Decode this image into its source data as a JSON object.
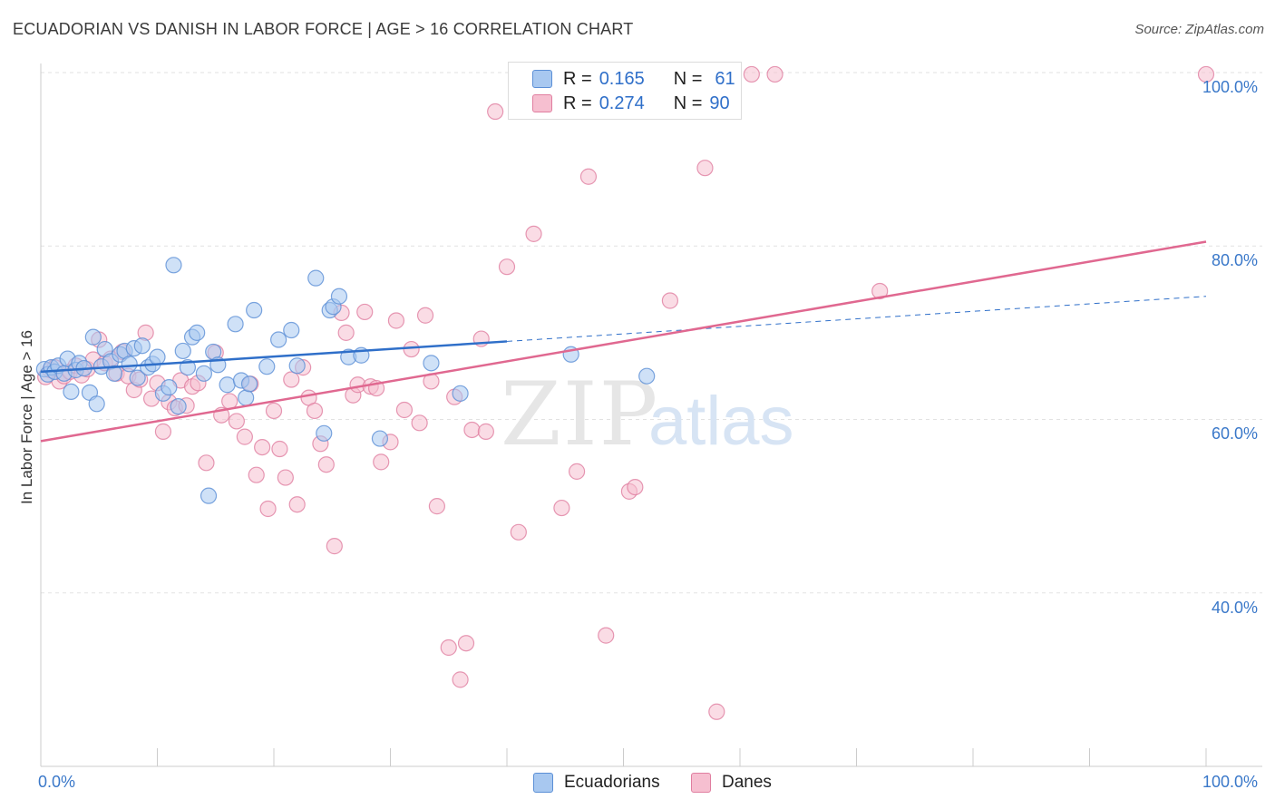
{
  "title": "ECUADORIAN VS DANISH IN LABOR FORCE | AGE > 16 CORRELATION CHART",
  "source": "Source: ZipAtlas.com",
  "watermark": {
    "zip": "ZIP",
    "atlas": "atlas"
  },
  "legend": {
    "ecuadorians": {
      "r_label": "R =",
      "r_value": "0.165",
      "n_label": "N =",
      "n_value": "61"
    },
    "danes": {
      "r_label": "R =",
      "r_value": "0.274",
      "n_label": "N =",
      "n_value": "90"
    }
  },
  "bottom_legend": {
    "ecuadorians": "Ecuadorians",
    "danes": "Danes"
  },
  "colors": {
    "ecuadorians_fill": "#a8c8f0",
    "ecuadorians_stroke": "#5b8fd6",
    "ecuadorians_line": "#2f6fc9",
    "danes_fill": "#f6bfd0",
    "danes_stroke": "#e07ea0",
    "danes_line": "#e06890",
    "axis_text": "#3a78c9",
    "grid": "#e2e2e2"
  },
  "chart_data": {
    "type": "scatter",
    "title": "ECUADORIAN VS DANISH IN LABOR FORCE | AGE > 16 CORRELATION CHART",
    "xlabel": "",
    "ylabel": "In Labor Force | Age > 16",
    "xlim": [
      0,
      100
    ],
    "ylim": [
      20,
      103
    ],
    "x_tick_labels": [
      "0.0%",
      "100.0%"
    ],
    "y_ticks": [
      40,
      60,
      80,
      100
    ],
    "y_tick_labels": [
      "40.0%",
      "60.0%",
      "80.0%",
      "100.0%"
    ],
    "series": [
      {
        "name": "Ecuadorians",
        "R": 0.165,
        "N": 61,
        "trend": {
          "x0": 0,
          "y0": 65.5,
          "x1": 40,
          "y1": 69.0,
          "dashed_to_x": 100,
          "dashed_to_y": 74.2
        },
        "points": [
          [
            0.3,
            65.8
          ],
          [
            0.6,
            65.2
          ],
          [
            0.9,
            66.0
          ],
          [
            1.2,
            65.5
          ],
          [
            1.5,
            66.2
          ],
          [
            2.0,
            65.3
          ],
          [
            2.3,
            67.0
          ],
          [
            2.6,
            63.2
          ],
          [
            3.0,
            65.7
          ],
          [
            3.3,
            66.5
          ],
          [
            3.7,
            65.9
          ],
          [
            4.2,
            63.1
          ],
          [
            4.5,
            69.5
          ],
          [
            4.8,
            61.8
          ],
          [
            5.2,
            66.1
          ],
          [
            5.5,
            68.1
          ],
          [
            6.0,
            66.7
          ],
          [
            6.3,
            65.3
          ],
          [
            6.8,
            67.5
          ],
          [
            7.2,
            67.9
          ],
          [
            7.6,
            66.4
          ],
          [
            8.0,
            68.2
          ],
          [
            8.3,
            64.8
          ],
          [
            8.7,
            68.5
          ],
          [
            9.2,
            66.0
          ],
          [
            9.6,
            66.4
          ],
          [
            10.0,
            67.2
          ],
          [
            10.5,
            63.0
          ],
          [
            11.0,
            63.7
          ],
          [
            11.4,
            77.8
          ],
          [
            11.8,
            61.5
          ],
          [
            12.2,
            67.9
          ],
          [
            12.6,
            66.0
          ],
          [
            13.0,
            69.5
          ],
          [
            13.4,
            70.0
          ],
          [
            14.0,
            65.3
          ],
          [
            14.4,
            51.2
          ],
          [
            14.8,
            67.8
          ],
          [
            15.2,
            66.3
          ],
          [
            16.0,
            64.0
          ],
          [
            16.7,
            71.0
          ],
          [
            17.2,
            64.5
          ],
          [
            17.6,
            62.5
          ],
          [
            17.9,
            64.1
          ],
          [
            18.3,
            72.6
          ],
          [
            19.4,
            66.1
          ],
          [
            20.4,
            69.2
          ],
          [
            21.5,
            70.3
          ],
          [
            22.0,
            66.2
          ],
          [
            23.6,
            76.3
          ],
          [
            24.3,
            58.4
          ],
          [
            24.8,
            72.6
          ],
          [
            25.1,
            73.0
          ],
          [
            25.6,
            74.2
          ],
          [
            26.4,
            67.2
          ],
          [
            27.5,
            67.4
          ],
          [
            29.1,
            57.8
          ],
          [
            33.5,
            66.5
          ],
          [
            36.0,
            63.0
          ],
          [
            45.5,
            67.5
          ],
          [
            52.0,
            65.0
          ]
        ]
      },
      {
        "name": "Danes",
        "R": 0.274,
        "N": 90,
        "trend": {
          "x0": 0,
          "y0": 57.5,
          "x1": 100,
          "y1": 80.5
        },
        "points": [
          [
            0.4,
            64.9
          ],
          [
            0.8,
            65.7
          ],
          [
            1.2,
            66.0
          ],
          [
            1.6,
            64.4
          ],
          [
            2.0,
            65.0
          ],
          [
            2.5,
            65.5
          ],
          [
            3.0,
            66.2
          ],
          [
            3.5,
            65.1
          ],
          [
            4.0,
            65.8
          ],
          [
            4.5,
            66.9
          ],
          [
            5.0,
            69.2
          ],
          [
            5.5,
            66.5
          ],
          [
            6.0,
            67.0
          ],
          [
            6.5,
            65.3
          ],
          [
            7.0,
            67.8
          ],
          [
            7.5,
            65.0
          ],
          [
            8.0,
            63.4
          ],
          [
            8.5,
            64.6
          ],
          [
            9.0,
            70.0
          ],
          [
            9.5,
            62.4
          ],
          [
            10.0,
            64.2
          ],
          [
            10.5,
            58.6
          ],
          [
            11.0,
            62.0
          ],
          [
            11.5,
            61.3
          ],
          [
            12.0,
            64.5
          ],
          [
            12.5,
            61.6
          ],
          [
            13.0,
            63.8
          ],
          [
            13.5,
            64.2
          ],
          [
            14.2,
            55.0
          ],
          [
            15.0,
            67.7
          ],
          [
            15.5,
            60.5
          ],
          [
            16.2,
            62.1
          ],
          [
            16.8,
            59.8
          ],
          [
            17.5,
            58.0
          ],
          [
            18.0,
            64.1
          ],
          [
            18.5,
            53.6
          ],
          [
            19.0,
            56.8
          ],
          [
            19.5,
            49.7
          ],
          [
            20.0,
            61.0
          ],
          [
            20.5,
            56.6
          ],
          [
            21.0,
            53.3
          ],
          [
            21.5,
            64.6
          ],
          [
            22.0,
            50.2
          ],
          [
            22.5,
            66.0
          ],
          [
            23.0,
            62.5
          ],
          [
            23.5,
            61.0
          ],
          [
            24.0,
            57.2
          ],
          [
            24.5,
            54.8
          ],
          [
            25.2,
            45.4
          ],
          [
            25.8,
            72.3
          ],
          [
            26.2,
            70.0
          ],
          [
            26.8,
            62.8
          ],
          [
            27.2,
            64.0
          ],
          [
            27.8,
            72.4
          ],
          [
            28.3,
            63.8
          ],
          [
            28.8,
            63.6
          ],
          [
            29.2,
            55.1
          ],
          [
            30.0,
            57.4
          ],
          [
            30.5,
            71.4
          ],
          [
            31.2,
            61.1
          ],
          [
            31.8,
            68.1
          ],
          [
            32.5,
            59.6
          ],
          [
            33.0,
            72.0
          ],
          [
            33.5,
            64.4
          ],
          [
            34.0,
            50.0
          ],
          [
            35.0,
            33.7
          ],
          [
            35.5,
            62.6
          ],
          [
            36.0,
            30.0
          ],
          [
            36.5,
            34.2
          ],
          [
            37.0,
            58.8
          ],
          [
            37.8,
            69.3
          ],
          [
            38.2,
            58.6
          ],
          [
            39.0,
            95.5
          ],
          [
            40.0,
            77.6
          ],
          [
            41.0,
            47.0
          ],
          [
            42.3,
            81.4
          ],
          [
            44.7,
            49.8
          ],
          [
            46.0,
            54.0
          ],
          [
            47.0,
            88.0
          ],
          [
            48.5,
            35.1
          ],
          [
            50.5,
            51.7
          ],
          [
            51.0,
            52.2
          ],
          [
            54.0,
            73.7
          ],
          [
            57.0,
            89.0
          ],
          [
            58.0,
            26.3
          ],
          [
            59.0,
            98.0
          ],
          [
            61.0,
            99.8
          ],
          [
            63.0,
            99.8
          ],
          [
            72.0,
            74.8
          ],
          [
            100.0,
            99.8
          ]
        ]
      }
    ]
  }
}
